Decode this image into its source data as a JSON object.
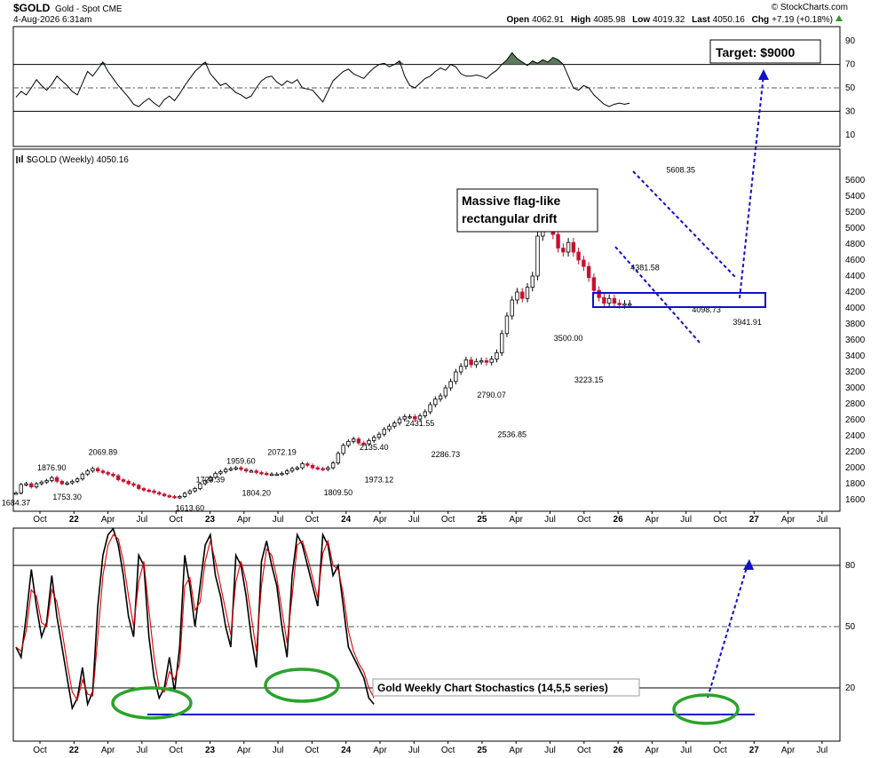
{
  "header": {
    "symbol": "$GOLD",
    "name": "Gold - Spot CME",
    "date": "4-Aug-2026 6:31am",
    "open_label": "Open",
    "open": "4062.91",
    "high_label": "High",
    "high": "4085.98",
    "low_label": "Low",
    "low": "4019.32",
    "last_label": "Last",
    "last": "4050.16",
    "chg_label": "Chg",
    "chg": "+7.19 (+0.18%)",
    "watermark": "© StockCharts.com"
  },
  "x_ticks": [
    "Oct",
    "22",
    "Apr",
    "Jul",
    "Oct",
    "23",
    "Apr",
    "Jul",
    "Oct",
    "24",
    "Apr",
    "Jul",
    "Oct",
    "25",
    "Apr",
    "Jul",
    "Oct",
    "26",
    "Apr",
    "Jul",
    "Oct",
    "27",
    "Apr",
    "Jul"
  ],
  "chart_data": [
    {
      "type": "line",
      "panel": "rsi",
      "yticks": [
        90,
        70,
        50,
        30,
        10
      ],
      "ylim": [
        0,
        100
      ],
      "reference_lines": [
        70,
        50,
        30
      ],
      "x": [
        0,
        2,
        4,
        6,
        8,
        10,
        12,
        14,
        16,
        18,
        20,
        22,
        24,
        26,
        28,
        30,
        32,
        34,
        36,
        38,
        40,
        42,
        44,
        46,
        48,
        50,
        52,
        54,
        56,
        58,
        60,
        62,
        64,
        66,
        68,
        70,
        72,
        74,
        76,
        78,
        80,
        82,
        84,
        86,
        88,
        90,
        92,
        94,
        96,
        98,
        100,
        102,
        104,
        106,
        108,
        110,
        112,
        114,
        116,
        118,
        120,
        122,
        124,
        126,
        128,
        130,
        132,
        134,
        136,
        138,
        140,
        142,
        144,
        146,
        148,
        150,
        152,
        154,
        156,
        158,
        160,
        162,
        164,
        166,
        168,
        170,
        172,
        174,
        176,
        178,
        180,
        182,
        184,
        186,
        188,
        190,
        192,
        194,
        196,
        198,
        200,
        202,
        204,
        206,
        208,
        210,
        212,
        214,
        216,
        218,
        220,
        222,
        224,
        226,
        228,
        230,
        232,
        234,
        236,
        238,
        240
      ],
      "values": [
        42,
        47,
        44,
        50,
        57,
        52,
        48,
        53,
        60,
        56,
        52,
        47,
        44,
        54,
        64,
        60,
        66,
        72,
        64,
        58,
        52,
        47,
        42,
        36,
        34,
        38,
        41,
        37,
        34,
        40,
        43,
        39,
        45,
        52,
        58,
        64,
        68,
        72,
        62,
        57,
        52,
        54,
        50,
        46,
        44,
        41,
        43,
        50,
        56,
        59,
        60,
        55,
        52,
        56,
        54,
        57,
        50,
        49,
        48,
        43,
        38,
        47,
        56,
        60,
        64,
        66,
        62,
        60,
        58,
        63,
        67,
        70,
        71,
        68,
        70,
        73,
        60,
        52,
        50,
        54,
        58,
        60,
        64,
        67,
        65,
        70,
        68,
        62,
        60,
        60,
        61,
        60,
        58,
        62,
        65,
        70,
        74,
        80,
        75,
        72,
        69,
        73,
        71,
        74,
        72,
        76,
        74,
        70,
        60,
        50,
        48,
        52,
        50,
        44,
        40,
        36,
        34,
        36,
        37,
        36,
        37
      ]
    },
    {
      "type": "candlestick",
      "panel": "price",
      "title": "$GOLD (Weekly) 4050.16",
      "yticks": [
        5600,
        5400,
        5200,
        5000,
        4800,
        4600,
        4400,
        4200,
        4000,
        3800,
        3600,
        3400,
        3200,
        3000,
        2800,
        2600,
        2400,
        2200,
        2000,
        1800,
        1600
      ],
      "ylim": [
        1550,
        5800
      ],
      "x": [
        0,
        2,
        4,
        6,
        8,
        10,
        12,
        14,
        16,
        18,
        20,
        22,
        24,
        26,
        28,
        30,
        32,
        34,
        36,
        38,
        40,
        42,
        44,
        46,
        48,
        50,
        52,
        54,
        56,
        58,
        60,
        62,
        64,
        66,
        68,
        70,
        72,
        74,
        76,
        78,
        80,
        82,
        84,
        86,
        88,
        90,
        92,
        94,
        96,
        98,
        100,
        102,
        104,
        106,
        108,
        110,
        112,
        114,
        116,
        118,
        120,
        122,
        124,
        126,
        128,
        130,
        132,
        134,
        136,
        138,
        140,
        142,
        144,
        146,
        148,
        150,
        152,
        154,
        156,
        158,
        160,
        162,
        164,
        166,
        168,
        170,
        172,
        174,
        176,
        178,
        180,
        182,
        184,
        186,
        188,
        190,
        192,
        194,
        196,
        198,
        200,
        202,
        204,
        206,
        208,
        210,
        212,
        214,
        216,
        218,
        220,
        222,
        224,
        226,
        228,
        230,
        232,
        234,
        236,
        238,
        240
      ],
      "close": [
        1684,
        1790,
        1800,
        1760,
        1800,
        1820,
        1840,
        1877,
        1830,
        1800,
        1810,
        1830,
        1860,
        1920,
        1960,
        1990,
        1960,
        1940,
        1920,
        1900,
        1850,
        1830,
        1800,
        1780,
        1740,
        1720,
        1710,
        1690,
        1670,
        1650,
        1640,
        1630,
        1640,
        1680,
        1710,
        1740,
        1800,
        1840,
        1880,
        1930,
        1950,
        1980,
        1990,
        2000,
        1980,
        1960,
        1960,
        1940,
        1930,
        1920,
        1920,
        1920,
        1930,
        1960,
        1990,
        2000,
        2050,
        2030,
        2000,
        1990,
        1980,
        2000,
        2060,
        2180,
        2280,
        2330,
        2360,
        2310,
        2300,
        2340,
        2380,
        2420,
        2480,
        2520,
        2560,
        2610,
        2640,
        2640,
        2610,
        2650,
        2700,
        2790,
        2860,
        2900,
        3000,
        3080,
        3200,
        3270,
        3350,
        3290,
        3330,
        3340,
        3320,
        3360,
        3440,
        3680,
        3900,
        4100,
        4200,
        4120,
        4260,
        4400,
        4900,
        5150,
        5100,
        4920,
        4750,
        4700,
        4820,
        4700,
        4600,
        4520,
        4380,
        4220,
        4130,
        4060,
        4120,
        4060,
        4040,
        4050,
        4050
      ],
      "annotations": [
        {
          "label": "1684.37",
          "at_x": 0,
          "value": 1684
        },
        {
          "label": "1876.90",
          "at_x": 14,
          "value": 1877
        },
        {
          "label": "1753.30",
          "at_x": 20,
          "value": 1753
        },
        {
          "label": "2069.89",
          "at_x": 34,
          "value": 2070
        },
        {
          "label": "1613.60",
          "at_x": 68,
          "value": 1614
        },
        {
          "label": "1729.39",
          "at_x": 76,
          "value": 1729
        },
        {
          "label": "1959.60",
          "at_x": 88,
          "value": 1960
        },
        {
          "label": "1804.20",
          "at_x": 94,
          "value": 1804
        },
        {
          "label": "2072.19",
          "at_x": 104,
          "value": 2072
        },
        {
          "label": "1809.50",
          "at_x": 126,
          "value": 1810
        },
        {
          "label": "2135.40",
          "at_x": 140,
          "value": 2135
        },
        {
          "label": "1973.12",
          "at_x": 142,
          "value": 1973
        },
        {
          "label": "2431.55",
          "at_x": 158,
          "value": 2432
        },
        {
          "label": "2286.73",
          "at_x": 168,
          "value": 2287
        },
        {
          "label": "2790.07",
          "at_x": 186,
          "value": 2790
        },
        {
          "label": "2536.85",
          "at_x": 194,
          "value": 2537
        },
        {
          "label": "3500.00",
          "at_x": 216,
          "value": 3500
        },
        {
          "label": "3223.15",
          "at_x": 224,
          "value": 3223
        },
        {
          "label": "4381.58",
          "at_x": 246,
          "value": 4382
        },
        {
          "label": "5608.35",
          "at_x": 260,
          "value": 5608
        },
        {
          "label": "4098.73",
          "at_x": 270,
          "value": 4099
        },
        {
          "label": "3941.91",
          "at_x": 286,
          "value": 3942
        }
      ],
      "text_annotation": "Massive flag-like rectangular drift",
      "target_label": "Target: $9000"
    },
    {
      "type": "line",
      "panel": "stochastics",
      "yticks": [
        80,
        50,
        20
      ],
      "ylim": [
        0,
        100
      ],
      "reference_lines": [
        80,
        50,
        20
      ],
      "series": [
        {
          "values": [
            40,
            35,
            55,
            78,
            60,
            45,
            52,
            75,
            55,
            40,
            25,
            10,
            15,
            30,
            12,
            18,
            60,
            85,
            95,
            98,
            90,
            75,
            55,
            45,
            85,
            80,
            45,
            25,
            15,
            20,
            35,
            18,
            40,
            85,
            70,
            50,
            70,
            90,
            95,
            75,
            65,
            50,
            40,
            85,
            80,
            65,
            45,
            30,
            82,
            92,
            80,
            70,
            50,
            35,
            75,
            95,
            90,
            80,
            70,
            60,
            95,
            90,
            75,
            80,
            60,
            40,
            35,
            30,
            25,
            15,
            12
          ]
        },
        {
          "values": [
            40,
            38,
            48,
            68,
            65,
            52,
            50,
            68,
            62,
            48,
            32,
            18,
            14,
            24,
            17,
            16,
            45,
            75,
            90,
            95,
            93,
            82,
            65,
            50,
            72,
            82,
            58,
            35,
            20,
            18,
            28,
            24,
            32,
            70,
            74,
            58,
            62,
            82,
            92,
            82,
            70,
            58,
            46,
            72,
            82,
            72,
            55,
            38,
            70,
            88,
            85,
            74,
            58,
            42,
            65,
            90,
            92,
            84,
            74,
            64,
            86,
            92,
            80,
            78,
            66,
            48,
            38,
            32,
            28,
            20,
            15
          ]
        }
      ],
      "label": "Gold Weekly Chart Stochastics (14,5,5 series)"
    }
  ],
  "colors": {
    "up": "#000000",
    "down": "#c8102e",
    "rsi_fill": "#5a7a5a",
    "stoch_fast": "#000000",
    "stoch_slow": "#e00000",
    "annot_blue": "#1010cc",
    "circle_green": "#2aa32a"
  }
}
